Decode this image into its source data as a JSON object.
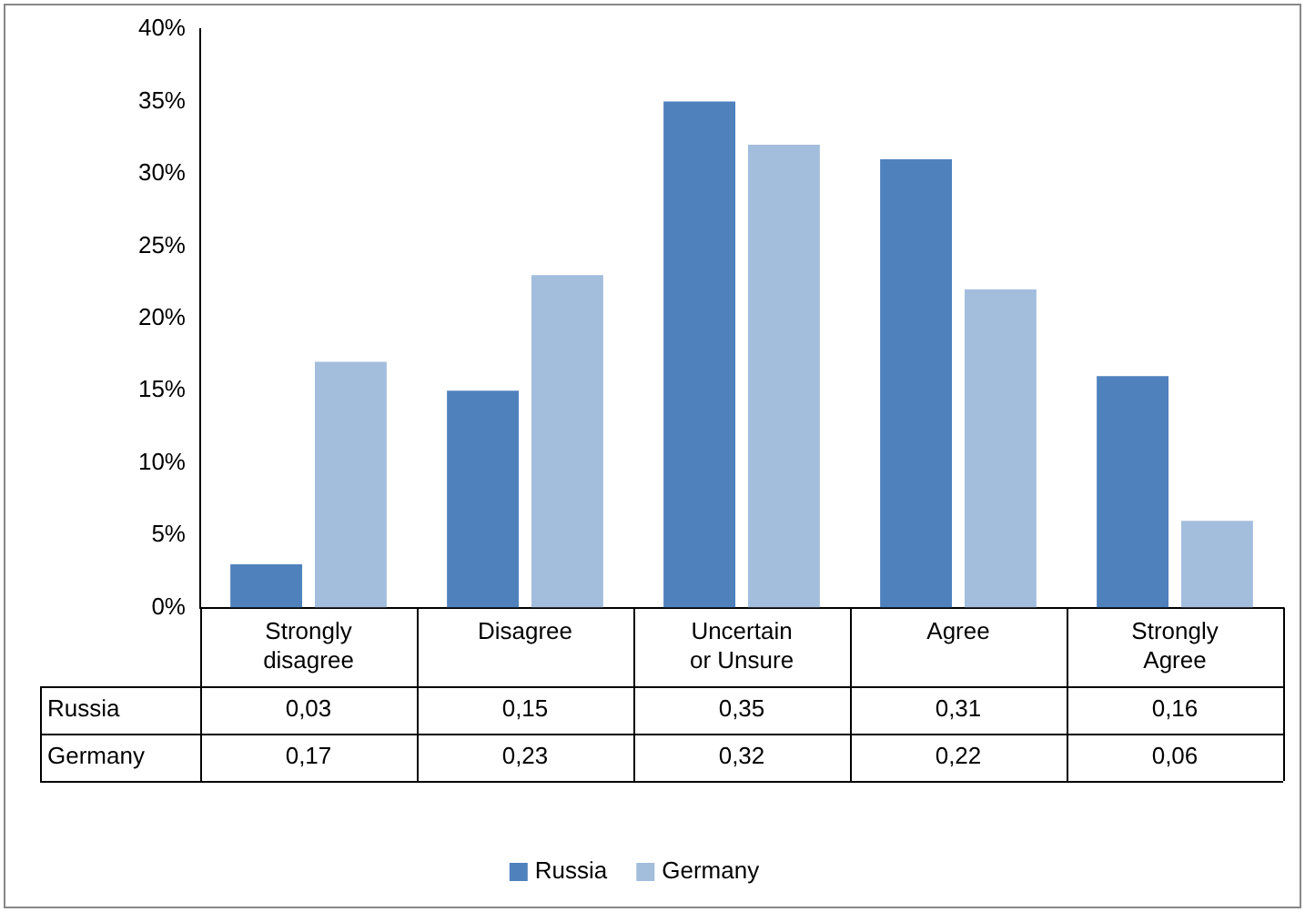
{
  "chart_data": {
    "type": "bar",
    "categories": [
      "Strongly disagree",
      "Disagree",
      "Uncertain or Unsure",
      "Agree",
      "Strongly Agree"
    ],
    "series": [
      {
        "name": "Russia",
        "color": "#4f81bd",
        "values": [
          0.03,
          0.15,
          0.35,
          0.31,
          0.16
        ],
        "value_labels": [
          "0,03",
          "0,15",
          "0,35",
          "0,31",
          "0,16"
        ]
      },
      {
        "name": "Germany",
        "color": "#a3bddd",
        "values": [
          0.17,
          0.23,
          0.32,
          0.22,
          0.06
        ],
        "value_labels": [
          "0,17",
          "0,23",
          "0,32",
          "0,22",
          "0,06"
        ]
      }
    ],
    "ylim": [
      0,
      0.4
    ],
    "yticks": [
      {
        "value": 0,
        "label": "0%"
      },
      {
        "value": 0.05,
        "label": "5%"
      },
      {
        "value": 0.1,
        "label": "10%"
      },
      {
        "value": 0.15,
        "label": "15%"
      },
      {
        "value": 0.2,
        "label": "20%"
      },
      {
        "value": 0.25,
        "label": "25%"
      },
      {
        "value": 0.3,
        "label": "30%"
      },
      {
        "value": 0.35,
        "label": "35%"
      },
      {
        "value": 0.4,
        "label": "40%"
      }
    ],
    "grid": false,
    "legend": "bottom"
  }
}
